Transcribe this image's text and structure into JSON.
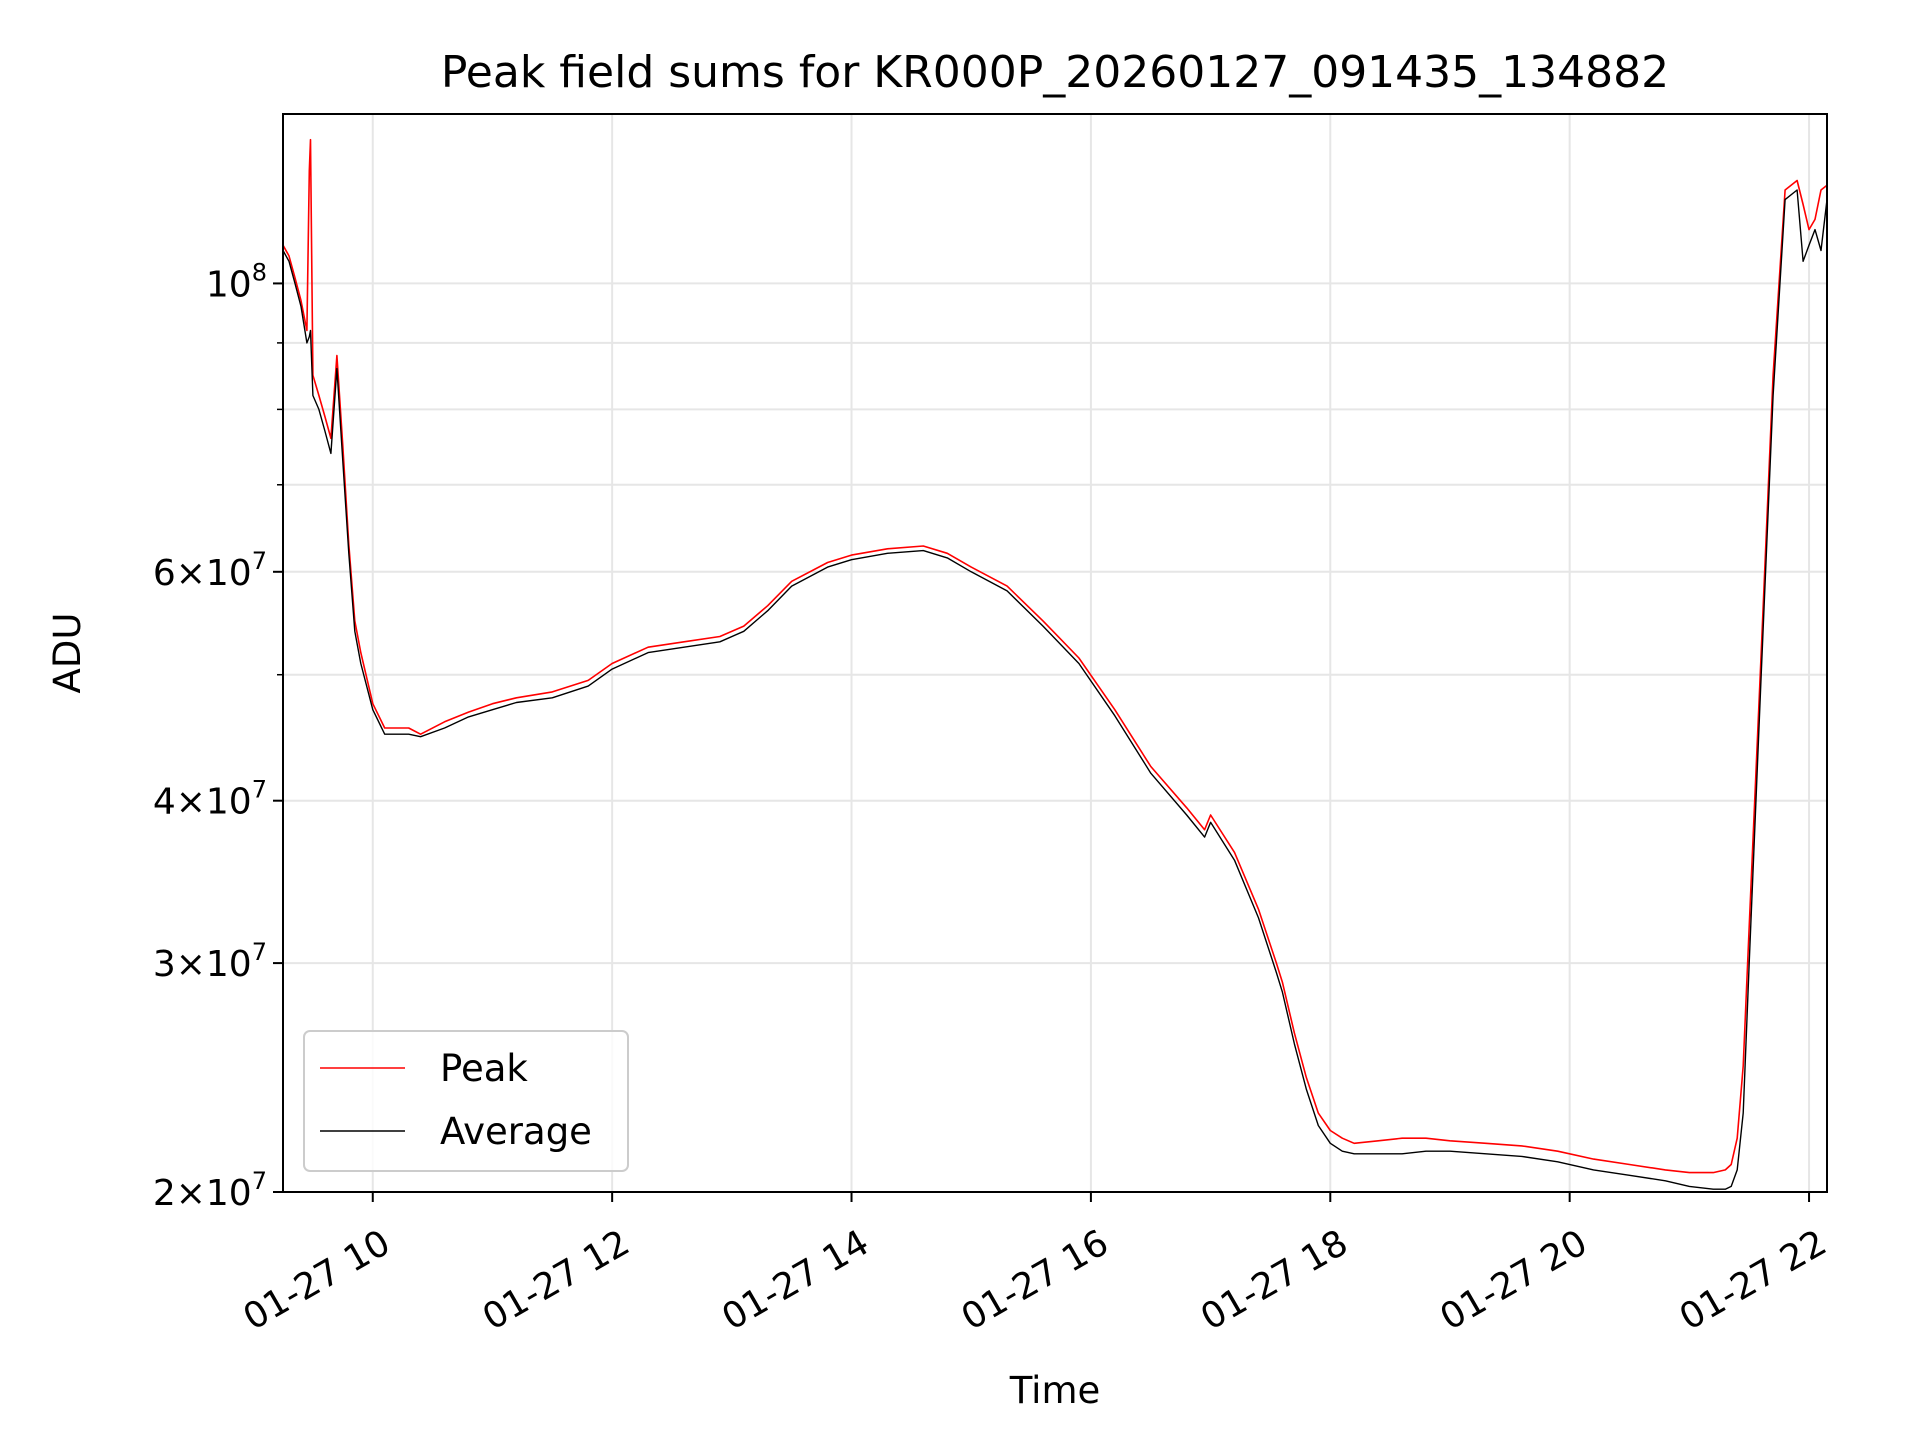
{
  "chart_data": {
    "type": "line",
    "title": "Peak field sums for KR000P_20260127_091435_134882",
    "xlabel": "Time",
    "ylabel": "ADU",
    "yscale": "log",
    "xlim": [
      9.25,
      22.15
    ],
    "ylim": [
      20000000,
      135000000
    ],
    "grid": true,
    "legend_position": "lower-left",
    "x_ticks": [
      {
        "value": 10,
        "label": "01-27 10"
      },
      {
        "value": 12,
        "label": "01-27 12"
      },
      {
        "value": 14,
        "label": "01-27 14"
      },
      {
        "value": 16,
        "label": "01-27 16"
      },
      {
        "value": 18,
        "label": "01-27 18"
      },
      {
        "value": 20,
        "label": "01-27 20"
      },
      {
        "value": 22,
        "label": "01-27 22"
      }
    ],
    "y_major_ticks": [
      {
        "value": 20000000,
        "base": "2×10",
        "exp": "7"
      },
      {
        "value": 30000000,
        "base": "3×10",
        "exp": "7"
      },
      {
        "value": 40000000,
        "base": "4×10",
        "exp": "7"
      },
      {
        "value": 60000000,
        "base": "6×10",
        "exp": "7"
      },
      {
        "value": 100000000,
        "base": "10",
        "exp": "8"
      }
    ],
    "y_minor_gridlines": [
      50000000,
      70000000,
      80000000,
      90000000
    ],
    "series": [
      {
        "name": "Peak",
        "color": "#ff0000",
        "x": [
          9.25,
          9.3,
          9.35,
          9.4,
          9.45,
          9.47,
          9.48,
          9.5,
          9.55,
          9.6,
          9.65,
          9.7,
          9.75,
          9.8,
          9.85,
          9.9,
          10.0,
          10.1,
          10.2,
          10.3,
          10.4,
          10.6,
          10.8,
          11.0,
          11.2,
          11.5,
          11.8,
          12.0,
          12.3,
          12.6,
          12.9,
          13.1,
          13.3,
          13.5,
          13.8,
          14.0,
          14.3,
          14.6,
          14.8,
          15.0,
          15.3,
          15.6,
          15.9,
          16.2,
          16.5,
          16.8,
          16.95,
          17.0,
          17.2,
          17.4,
          17.55,
          17.6,
          17.7,
          17.8,
          17.9,
          18.0,
          18.1,
          18.2,
          18.4,
          18.6,
          18.8,
          19.0,
          19.3,
          19.6,
          19.9,
          20.2,
          20.5,
          20.8,
          21.0,
          21.2,
          21.3,
          21.35,
          21.4,
          21.45,
          21.5,
          21.6,
          21.7,
          21.8,
          21.9,
          21.95,
          22.0,
          22.05,
          22.1,
          22.15
        ],
        "y": [
          107000000,
          105000000,
          101000000,
          97000000,
          92000000,
          122000000,
          129000000,
          85000000,
          82000000,
          79000000,
          76000000,
          88000000,
          75000000,
          63000000,
          55000000,
          52000000,
          47500000,
          45500000,
          45500000,
          45500000,
          45000000,
          46000000,
          46800000,
          47500000,
          48000000,
          48500000,
          49500000,
          51000000,
          52500000,
          53000000,
          53500000,
          54500000,
          56500000,
          59000000,
          61000000,
          61800000,
          62500000,
          62800000,
          62000000,
          60500000,
          58500000,
          55000000,
          51500000,
          47000000,
          42500000,
          39500000,
          38000000,
          39000000,
          36500000,
          33000000,
          30000000,
          29000000,
          26500000,
          24500000,
          23000000,
          22300000,
          22000000,
          21800000,
          21900000,
          22000000,
          22000000,
          21900000,
          21800000,
          21700000,
          21500000,
          21200000,
          21000000,
          20800000,
          20700000,
          20700000,
          20800000,
          21000000,
          22000000,
          25000000,
          32000000,
          52000000,
          85000000,
          118000000,
          120000000,
          115000000,
          110000000,
          112000000,
          118000000,
          119000000
        ]
      },
      {
        "name": "Average",
        "color": "#000000",
        "x": [
          9.25,
          9.3,
          9.35,
          9.4,
          9.45,
          9.47,
          9.48,
          9.5,
          9.55,
          9.6,
          9.65,
          9.7,
          9.75,
          9.8,
          9.85,
          9.9,
          10.0,
          10.1,
          10.2,
          10.3,
          10.4,
          10.6,
          10.8,
          11.0,
          11.2,
          11.5,
          11.8,
          12.0,
          12.3,
          12.6,
          12.9,
          13.1,
          13.3,
          13.5,
          13.8,
          14.0,
          14.3,
          14.6,
          14.8,
          15.0,
          15.3,
          15.6,
          15.9,
          16.2,
          16.5,
          16.8,
          16.95,
          17.0,
          17.2,
          17.4,
          17.55,
          17.6,
          17.7,
          17.8,
          17.9,
          18.0,
          18.1,
          18.2,
          18.4,
          18.6,
          18.8,
          19.0,
          19.3,
          19.6,
          19.9,
          20.2,
          20.5,
          20.8,
          21.0,
          21.2,
          21.3,
          21.35,
          21.4,
          21.45,
          21.5,
          21.6,
          21.7,
          21.8,
          21.9,
          21.95,
          22.0,
          22.05,
          22.1,
          22.15
        ],
        "y": [
          106000000,
          104000000,
          100000000,
          96000000,
          90000000,
          91000000,
          92000000,
          82000000,
          80000000,
          77000000,
          74000000,
          86000000,
          73000000,
          62000000,
          54000000,
          51000000,
          47000000,
          45000000,
          45000000,
          45000000,
          44800000,
          45500000,
          46400000,
          47000000,
          47600000,
          48000000,
          49000000,
          50500000,
          52000000,
          52500000,
          53000000,
          54000000,
          56000000,
          58500000,
          60500000,
          61300000,
          62000000,
          62300000,
          61500000,
          60000000,
          58000000,
          54500000,
          51000000,
          46500000,
          42000000,
          39000000,
          37500000,
          38500000,
          36000000,
          32500000,
          29500000,
          28500000,
          26000000,
          24000000,
          22500000,
          21800000,
          21500000,
          21400000,
          21400000,
          21400000,
          21500000,
          21500000,
          21400000,
          21300000,
          21100000,
          20800000,
          20600000,
          20400000,
          20200000,
          20100000,
          20100000,
          20200000,
          20800000,
          23000000,
          30000000,
          50000000,
          82000000,
          116000000,
          118000000,
          104000000,
          107000000,
          110000000,
          106000000,
          116000000
        ]
      }
    ]
  }
}
